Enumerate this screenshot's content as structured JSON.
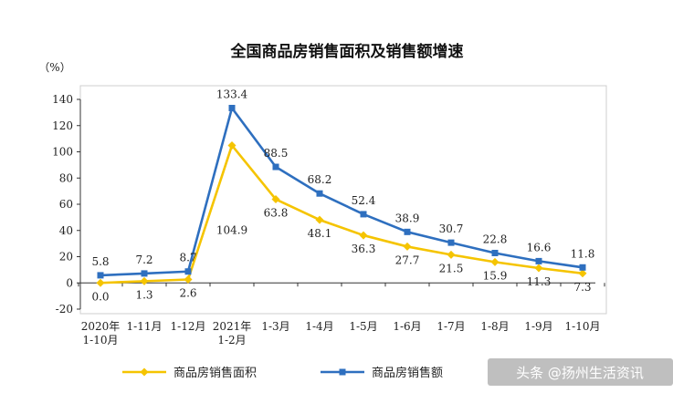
{
  "chart_data": {
    "type": "line",
    "title": "全国商品房销售面积及销售额增速",
    "ylabel": "（%）",
    "ylim": [
      -20,
      140
    ],
    "yticks": [
      -20,
      0,
      20,
      40,
      60,
      80,
      100,
      120,
      140
    ],
    "grid": false,
    "legend_position": "bottom",
    "categories": [
      [
        "2020年",
        "1-10月"
      ],
      [
        "1-11月"
      ],
      [
        "1-12月"
      ],
      [
        "2021年",
        "1-2月"
      ],
      [
        "1-3月"
      ],
      [
        "1-4月"
      ],
      [
        "1-5月"
      ],
      [
        "1-6月"
      ],
      [
        "1-7月"
      ],
      [
        "1-8月"
      ],
      [
        "1-9月"
      ],
      [
        "1-10月"
      ]
    ],
    "series": [
      {
        "name": "商品房销售面积",
        "color": "#f5c400",
        "marker": "diamond",
        "values": [
          0.0,
          1.3,
          2.6,
          104.9,
          63.8,
          48.1,
          36.3,
          27.7,
          21.5,
          15.9,
          11.3,
          7.3
        ],
        "labels": [
          "0.0",
          "1.3",
          "2.6",
          "104.9",
          "63.8",
          "48.1",
          "36.3",
          "27.7",
          "21.5",
          "15.9",
          "11.3",
          "7.3"
        ]
      },
      {
        "name": "商品房销售额",
        "color": "#2e6fbf",
        "marker": "square",
        "values": [
          5.8,
          7.2,
          8.7,
          133.4,
          88.5,
          68.2,
          52.4,
          38.9,
          30.7,
          22.8,
          16.6,
          11.8
        ],
        "labels": [
          "5.8",
          "7.2",
          "8.7",
          "133.4",
          "88.5",
          "68.2",
          "52.4",
          "38.9",
          "30.7",
          "22.8",
          "16.6",
          "11.8"
        ]
      }
    ]
  },
  "watermark": "头条 @扬州生活资讯"
}
